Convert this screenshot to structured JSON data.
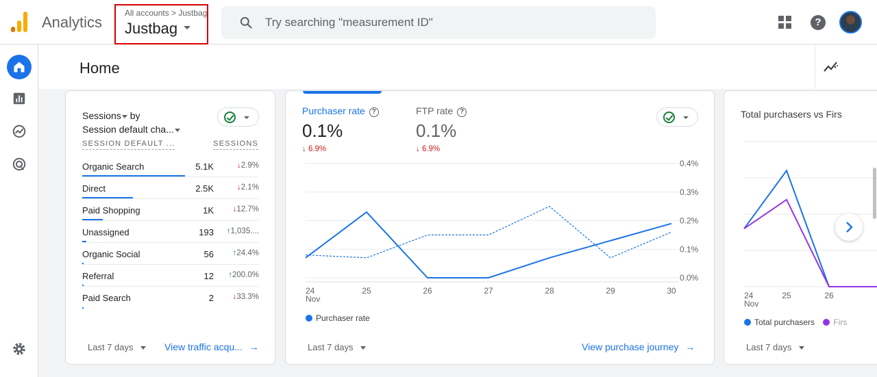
{
  "app": {
    "title": "Analytics",
    "colors": {
      "accent": "#1a73e8",
      "logo_orange": "#f9ab00",
      "logo_dark": "#e37400"
    }
  },
  "account": {
    "breadcrumb": "All accounts > Justbag",
    "name": "Justbag"
  },
  "search": {
    "placeholder": "Try searching \"measurement ID\""
  },
  "toolbar": {
    "icons": [
      "apps-icon",
      "help-icon",
      "avatar"
    ]
  },
  "rail": {
    "items": [
      "home-icon",
      "reports-icon",
      "explore-icon",
      "advertising-icon",
      "settings-icon"
    ],
    "active": "home-icon"
  },
  "header": {
    "title": "Home"
  },
  "sessions_card": {
    "metric": "Sessions",
    "by": "by",
    "dimension": "Session default cha...",
    "col_dimension": "SESSION DEFAULT ...",
    "col_metric": "SESSIONS",
    "rows": [
      {
        "name": "Organic Search",
        "value": "5.1K",
        "arrow": "↓",
        "change": "2.9%",
        "direction": "down",
        "share": 1.0
      },
      {
        "name": "Direct",
        "value": "2.5K",
        "arrow": "↓",
        "change": "2.1%",
        "direction": "down",
        "share": 0.49
      },
      {
        "name": "Paid Shopping",
        "value": "1K",
        "arrow": "↓",
        "change": "12.7%",
        "direction": "down",
        "share": 0.2
      },
      {
        "name": "Unassigned",
        "value": "193",
        "arrow": "↑",
        "change": "1,035....",
        "direction": "up",
        "share": 0.038
      },
      {
        "name": "Organic Social",
        "value": "56",
        "arrow": "↑",
        "change": "24.4%",
        "direction": "up",
        "share": 0.011
      },
      {
        "name": "Referral",
        "value": "12",
        "arrow": "↑",
        "change": "200.0%",
        "direction": "up",
        "share": 0.002
      },
      {
        "name": "Paid Search",
        "value": "2",
        "arrow": "↓",
        "change": "33.3%",
        "direction": "down",
        "share": 0.0004
      }
    ],
    "date_range": "Last 7 days",
    "link": "View traffic acqu..."
  },
  "purchase_card": {
    "metrics": [
      {
        "label": "Purchaser rate",
        "value": "0.1%",
        "change": "↓ 6.9%",
        "selected": true
      },
      {
        "label": "FTP rate",
        "value": "0.1%",
        "change": "↓ 6.9%",
        "selected": false
      }
    ],
    "legend": "Purchaser rate",
    "date_range": "Last 7 days",
    "link": "View purchase journey"
  },
  "purchasers_card": {
    "title": "Total purchasers vs Firs",
    "legend": [
      "Total purchasers",
      "Firs"
    ],
    "date_range": "Last 7 days"
  },
  "chart_data": [
    {
      "type": "line",
      "x": [
        "24 Nov",
        "25",
        "26",
        "27",
        "28",
        "29",
        "30"
      ],
      "xtick_labels": [
        [
          "24",
          "Nov"
        ],
        [
          "25"
        ],
        [
          "26"
        ],
        [
          "27"
        ],
        [
          "28"
        ],
        [
          "29"
        ],
        [
          "30"
        ]
      ],
      "yticks": [
        "0.4%",
        "0.3%",
        "0.2%",
        "0.1%",
        "0.0%"
      ],
      "ylim": [
        0,
        0.4
      ],
      "series": [
        {
          "name": "Purchaser rate",
          "values": [
            0.07,
            0.23,
            0.0,
            0.0,
            0.07,
            0.13,
            0.19
          ],
          "color": "#1a73e8",
          "style": "solid"
        },
        {
          "values": [
            0.08,
            0.07,
            0.15,
            0.15,
            0.25,
            0.07,
            0.16
          ],
          "color": "#1a73e8",
          "style": "dashed"
        }
      ],
      "grid": true,
      "legend_position": "bottom-left"
    },
    {
      "type": "line",
      "x": [
        "24 Nov",
        "25",
        "26"
      ],
      "xtick_labels": [
        [
          "24",
          "Nov"
        ],
        [
          "25"
        ],
        [
          "26"
        ]
      ],
      "series": [
        {
          "name": "Total purchasers",
          "values": [
            2,
            4,
            0
          ],
          "color": "#1a73e8"
        },
        {
          "name": "Firs",
          "values": [
            2,
            3,
            0
          ],
          "color": "#9334e6"
        }
      ],
      "grid": true,
      "legend_position": "bottom-left"
    }
  ]
}
